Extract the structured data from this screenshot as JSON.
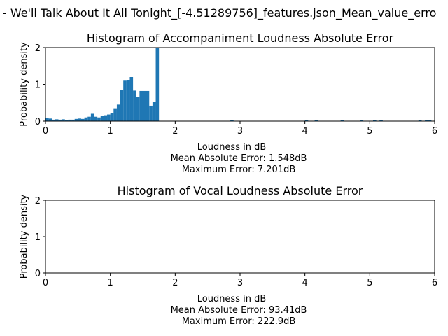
{
  "figure": {
    "suptitle": "- We'll Talk About It All Tonight_[-4.51289756]_features.json_Mean_value_erro"
  },
  "chart_data": [
    {
      "type": "histogram",
      "title": "Histogram of Accompaniment Loudness Absolute Error",
      "xlabel": "Loudness in dB",
      "ylabel": "Probability density",
      "xlim": [
        0,
        6
      ],
      "ylim": [
        0,
        2
      ],
      "xticks": [
        "0",
        "1",
        "2",
        "3",
        "4",
        "5",
        "6"
      ],
      "yticks": [
        "0",
        "1",
        "2"
      ],
      "bar_color": "#1f77b4",
      "bin_width": 0.05,
      "bins": [
        {
          "x": 0.0,
          "y": 0.08
        },
        {
          "x": 0.05,
          "y": 0.07
        },
        {
          "x": 0.1,
          "y": 0.04
        },
        {
          "x": 0.15,
          "y": 0.05
        },
        {
          "x": 0.2,
          "y": 0.04
        },
        {
          "x": 0.25,
          "y": 0.05
        },
        {
          "x": 0.3,
          "y": 0.02
        },
        {
          "x": 0.35,
          "y": 0.04
        },
        {
          "x": 0.4,
          "y": 0.04
        },
        {
          "x": 0.45,
          "y": 0.06
        },
        {
          "x": 0.5,
          "y": 0.07
        },
        {
          "x": 0.55,
          "y": 0.06
        },
        {
          "x": 0.6,
          "y": 0.1
        },
        {
          "x": 0.65,
          "y": 0.12
        },
        {
          "x": 0.7,
          "y": 0.2
        },
        {
          "x": 0.75,
          "y": 0.12
        },
        {
          "x": 0.8,
          "y": 0.1
        },
        {
          "x": 0.85,
          "y": 0.15
        },
        {
          "x": 0.9,
          "y": 0.16
        },
        {
          "x": 0.95,
          "y": 0.18
        },
        {
          "x": 1.0,
          "y": 0.22
        },
        {
          "x": 1.05,
          "y": 0.35
        },
        {
          "x": 1.1,
          "y": 0.45
        },
        {
          "x": 1.15,
          "y": 0.85
        },
        {
          "x": 1.2,
          "y": 1.1
        },
        {
          "x": 1.25,
          "y": 1.12
        },
        {
          "x": 1.3,
          "y": 1.2
        },
        {
          "x": 1.35,
          "y": 0.83
        },
        {
          "x": 1.4,
          "y": 0.65
        },
        {
          "x": 1.45,
          "y": 0.82
        },
        {
          "x": 1.5,
          "y": 0.82
        },
        {
          "x": 1.55,
          "y": 0.82
        },
        {
          "x": 1.6,
          "y": 0.42
        },
        {
          "x": 1.65,
          "y": 0.53
        },
        {
          "x": 1.7,
          "y": 2.0
        },
        {
          "x": 2.85,
          "y": 0.03
        },
        {
          "x": 4.0,
          "y": 0.03
        },
        {
          "x": 4.15,
          "y": 0.03
        },
        {
          "x": 4.55,
          "y": 0.02
        },
        {
          "x": 4.85,
          "y": 0.02
        },
        {
          "x": 5.05,
          "y": 0.03
        },
        {
          "x": 5.15,
          "y": 0.03
        },
        {
          "x": 5.75,
          "y": 0.02
        },
        {
          "x": 5.85,
          "y": 0.03
        },
        {
          "x": 5.9,
          "y": 0.02
        }
      ],
      "stats": [
        "Mean Absolute Error: 1.548dB",
        "Maximum Error: 7.201dB"
      ]
    },
    {
      "type": "histogram",
      "title": "Histogram of Vocal Loudness Absolute Error",
      "xlabel": "Loudness in dB",
      "ylabel": "Probability density",
      "xlim": [
        0,
        6
      ],
      "ylim": [
        0,
        2
      ],
      "xticks": [
        "0",
        "1",
        "2",
        "3",
        "4",
        "5",
        "6"
      ],
      "yticks": [
        "0",
        "1",
        "2"
      ],
      "bar_color": "#1f77b4",
      "bin_width": 0.05,
      "bins": [],
      "stats": [
        "Mean Absolute Error: 93.41dB",
        "Maximum Error: 222.9dB"
      ]
    }
  ]
}
